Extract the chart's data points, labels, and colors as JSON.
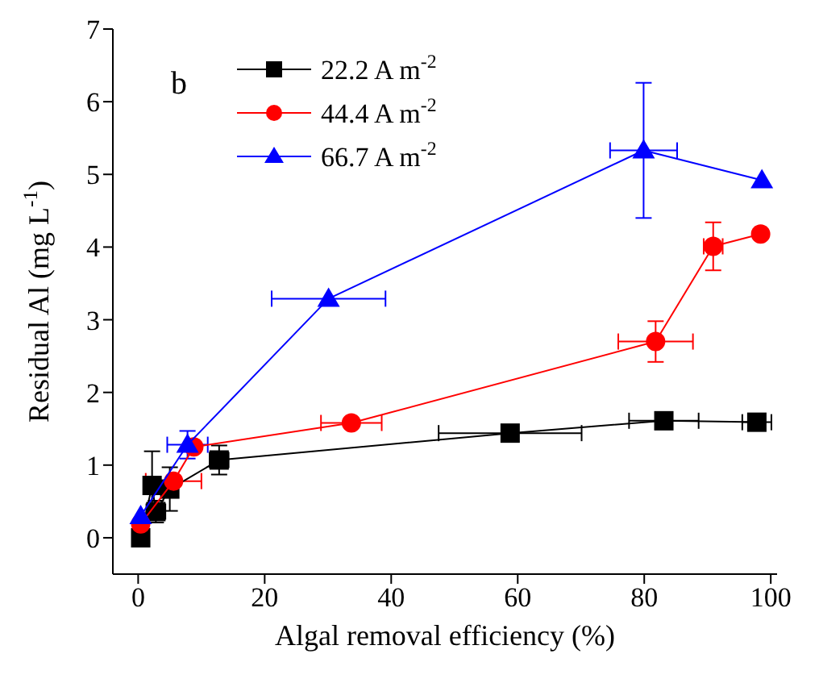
{
  "chart_data": {
    "type": "line",
    "xlabel": "Algal removal efficiency (%)",
    "ylabel": "Residual Al (mg L$^{-1}$)",
    "annotations": [
      "b"
    ],
    "xlim": [
      -4,
      101
    ],
    "xticks": [
      0,
      20,
      40,
      60,
      80,
      100
    ],
    "ylim": [
      -0.5,
      7
    ],
    "yticks": [
      0,
      1,
      2,
      3,
      4,
      5,
      6,
      7
    ],
    "grid": false,
    "legend": "top left",
    "line_style": "solid",
    "series": [
      {
        "name": "22.2 A m$^{-2}$",
        "color": "#000000",
        "marker": "square",
        "x": [
          0.4,
          2.2,
          2.8,
          5.0,
          12.8,
          58.8,
          83.1,
          97.8
        ],
        "values": [
          0.0,
          0.72,
          0.36,
          0.67,
          1.07,
          1.44,
          1.61,
          1.59
        ],
        "errors": [
          null,
          0.47,
          0.15,
          0.3,
          0.2,
          null,
          null,
          null
        ],
        "xerrors": [
          null,
          null,
          1.5,
          null,
          1.5,
          11.3,
          5.5,
          2.3
        ]
      },
      {
        "name": "44.4 A m$^{-2}$",
        "color": "#ff0000",
        "marker": "circle",
        "x": [
          0.4,
          5.6,
          8.8,
          33.7,
          81.8,
          90.9,
          98.4
        ],
        "values": [
          0.19,
          0.78,
          1.25,
          1.58,
          2.7,
          4.01,
          4.18
        ],
        "errors": [
          null,
          null,
          null,
          null,
          0.28,
          0.33,
          null
        ],
        "xerrors": [
          null,
          4.4,
          null,
          4.8,
          5.9,
          1.5,
          null
        ]
      },
      {
        "name": "66.7 A m$^{-2}$",
        "color": "#0000ff",
        "marker": "triangle",
        "x": [
          0.4,
          7.8,
          30.1,
          79.9,
          98.6
        ],
        "values": [
          0.3,
          1.28,
          3.29,
          5.33,
          4.92
        ],
        "errors": [
          null,
          0.19,
          null,
          0.93,
          null
        ],
        "xerrors": [
          null,
          3.2,
          9,
          5.3,
          null
        ]
      }
    ]
  }
}
